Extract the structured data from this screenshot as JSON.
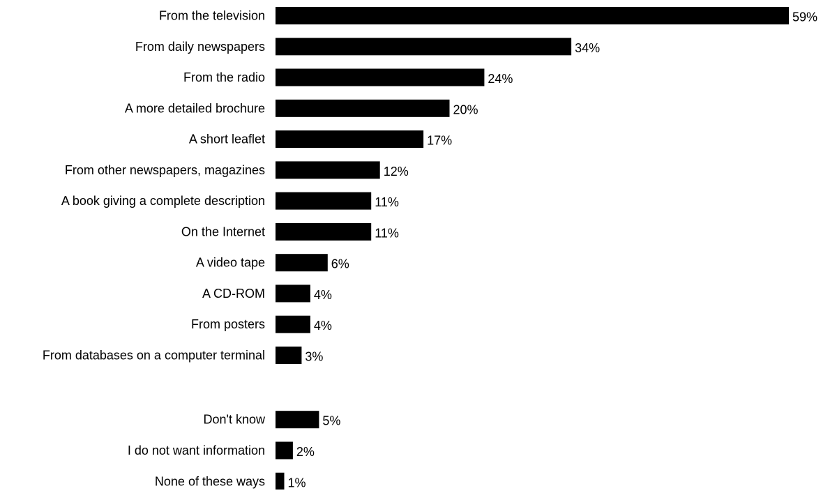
{
  "chart_data": {
    "type": "bar",
    "orientation": "horizontal",
    "title": "",
    "xlabel": "",
    "ylabel": "",
    "grid": false,
    "bar_color": "#000000",
    "value_suffix": "%",
    "xlim": [
      0,
      59
    ],
    "categories": [
      "From the television",
      "From daily newspapers",
      "From the radio",
      "A more detailed brochure",
      "A short leaflet",
      "From other newspapers, magazines",
      "A book giving a complete description",
      "On the Internet",
      "A video tape",
      "A CD-ROM",
      "From posters",
      "From databases on a computer terminal",
      "Don't know",
      "I do not want information",
      "None of these ways"
    ],
    "values": [
      59,
      34,
      24,
      20,
      17,
      12,
      11,
      11,
      6,
      4,
      4,
      3,
      5,
      2,
      1
    ],
    "value_labels": [
      "59%",
      "34%",
      "24%",
      "20%",
      "17%",
      "12%",
      "11%",
      "11%",
      "6%",
      "4%",
      "4%",
      "3%",
      "5%",
      "2%",
      "1%"
    ]
  }
}
